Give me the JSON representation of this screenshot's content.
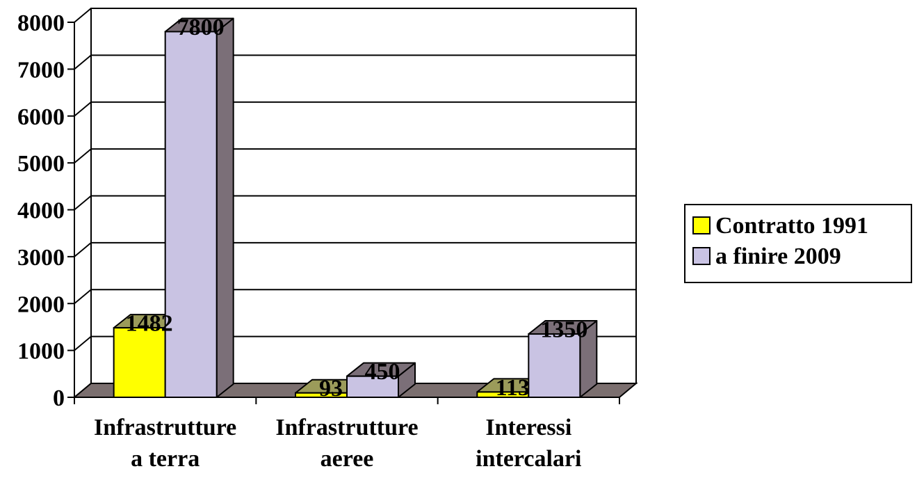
{
  "chart_data": {
    "type": "bar",
    "categories": [
      [
        "Infrastrutture",
        "a terra"
      ],
      [
        "Infrastrutture",
        "aeree"
      ],
      [
        "Interessi",
        "intercalari"
      ]
    ],
    "series": [
      {
        "name": "Contratto 1991",
        "values": [
          1482,
          93,
          113
        ],
        "color": "#ffff00",
        "side_color": "#9b9b5a"
      },
      {
        "name": "a finire 2009",
        "values": [
          7800,
          450,
          1350
        ],
        "color": "#c9c3e3",
        "side_color": "#7b6f78"
      }
    ],
    "data_labels": [
      [
        "1482",
        "93",
        "113"
      ],
      [
        "7800",
        "450",
        "1350"
      ]
    ],
    "y_ticks": [
      "0",
      "1000",
      "2000",
      "3000",
      "4000",
      "5000",
      "6000",
      "7000",
      "8000"
    ],
    "ylim": [
      0,
      8000
    ],
    "grid": true,
    "legend_position": "right",
    "floor_color": "#7b6f6f"
  }
}
